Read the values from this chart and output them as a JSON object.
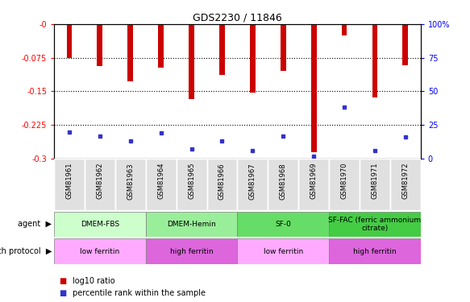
{
  "title": "GDS2230 / 11846",
  "samples": [
    "GSM81961",
    "GSM81962",
    "GSM81963",
    "GSM81964",
    "GSM81965",
    "GSM81966",
    "GSM81967",
    "GSM81968",
    "GSM81969",
    "GSM81970",
    "GSM81971",
    "GSM81972"
  ],
  "log10_ratio": [
    -0.075,
    -0.093,
    -0.128,
    -0.097,
    -0.168,
    -0.113,
    -0.152,
    -0.105,
    -0.285,
    -0.025,
    -0.163,
    -0.092
  ],
  "percentile_rank": [
    0.2,
    0.17,
    0.13,
    0.19,
    0.07,
    0.13,
    0.06,
    0.17,
    0.02,
    0.38,
    0.06,
    0.16
  ],
  "bar_color": "#cc0000",
  "dot_color": "#3333cc",
  "ylim_left": [
    -0.3,
    0.0
  ],
  "ylim_right": [
    0,
    100
  ],
  "yticks_left": [
    0.0,
    -0.075,
    -0.15,
    -0.225,
    -0.3
  ],
  "yticks_right": [
    0,
    25,
    50,
    75,
    100
  ],
  "ytick_labels_left": [
    "-0",
    "-0.075",
    "-0.15",
    "-0.225",
    "-0.3"
  ],
  "ytick_labels_right": [
    "0",
    "25",
    "50",
    "75",
    "100%"
  ],
  "gridlines": [
    -0.075,
    -0.15,
    -0.225
  ],
  "agent_groups": [
    {
      "label": "DMEM-FBS",
      "start": 0,
      "end": 3,
      "color": "#ccffcc"
    },
    {
      "label": "DMEM-Hemin",
      "start": 3,
      "end": 6,
      "color": "#99ee99"
    },
    {
      "label": "SF-0",
      "start": 6,
      "end": 9,
      "color": "#66dd66"
    },
    {
      "label": "SF-FAC (ferric ammonium\ncitrate)",
      "start": 9,
      "end": 12,
      "color": "#44cc44"
    }
  ],
  "growth_groups": [
    {
      "label": "low ferritin",
      "start": 0,
      "end": 3,
      "color": "#ffaaff"
    },
    {
      "label": "high ferritin",
      "start": 3,
      "end": 6,
      "color": "#dd66dd"
    },
    {
      "label": "low ferritin",
      "start": 6,
      "end": 9,
      "color": "#ffaaff"
    },
    {
      "label": "high ferritin",
      "start": 9,
      "end": 12,
      "color": "#dd66dd"
    }
  ],
  "legend_items": [
    {
      "color": "#cc0000",
      "label": "log10 ratio"
    },
    {
      "color": "#3333cc",
      "label": "percentile rank within the sample"
    }
  ],
  "bar_width": 0.18
}
